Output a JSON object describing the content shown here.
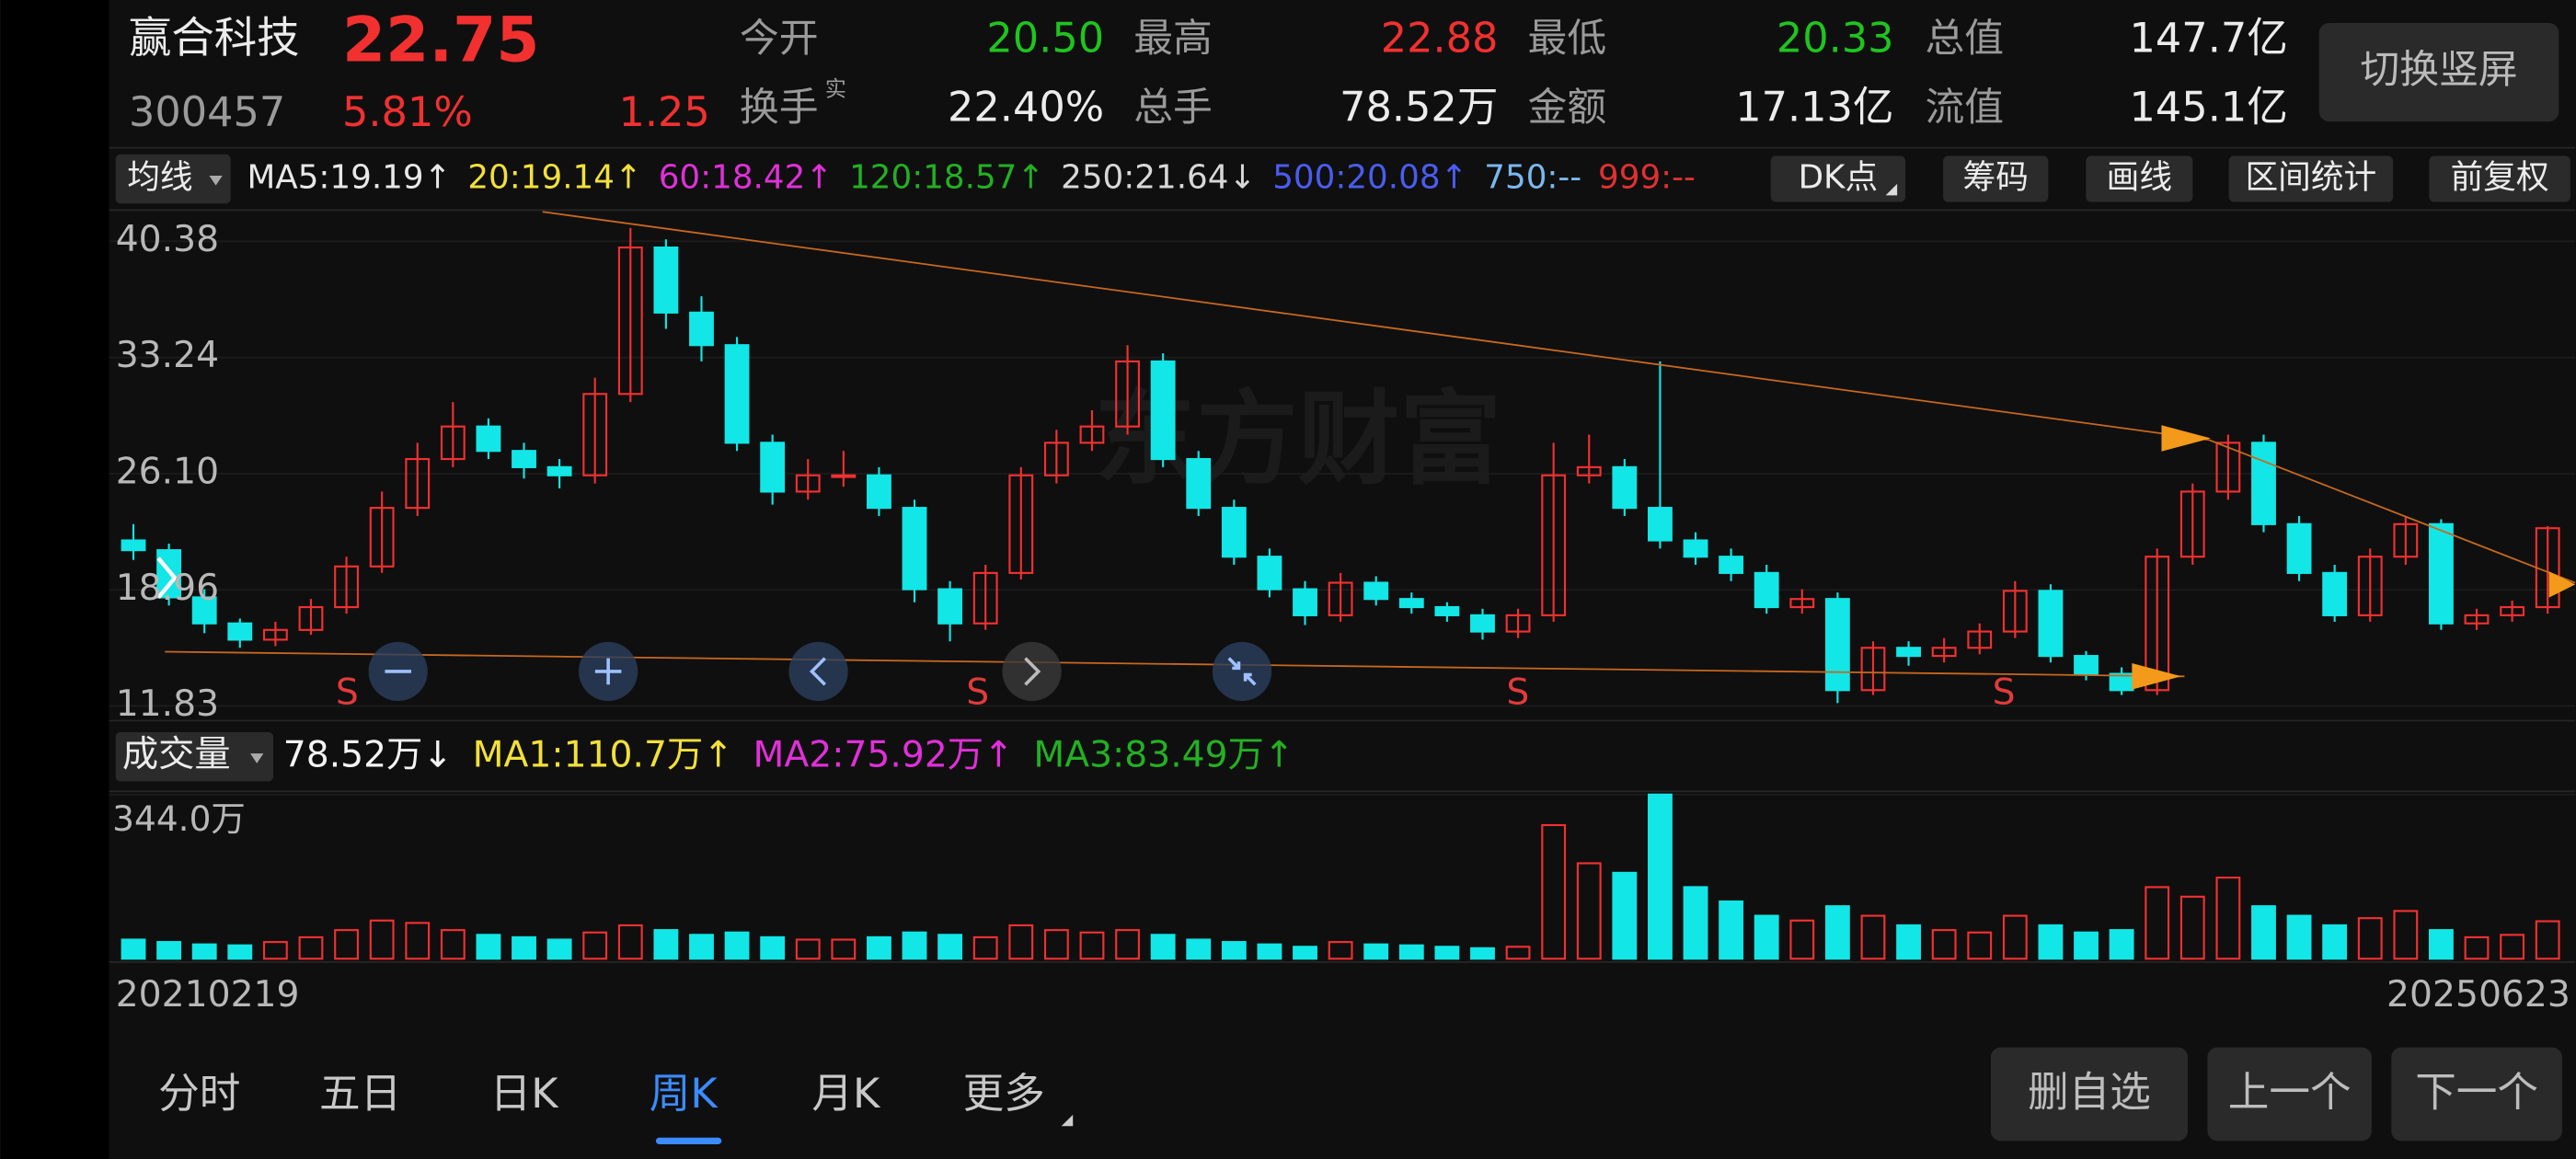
{
  "header": {
    "name": "赢合科技",
    "price": "22.75",
    "code": "300457",
    "change_pct": "5.81%",
    "change": "1.25",
    "stats": [
      [
        {
          "label": "今开",
          "value": "20.50",
          "color": "#1fc41f"
        },
        {
          "label": "最高",
          "value": "22.88",
          "color": "#f23030"
        },
        {
          "label": "最低",
          "value": "20.33",
          "color": "#1fc41f"
        },
        {
          "label": "总值",
          "value": "147.7亿",
          "color": "#ececec"
        }
      ],
      [
        {
          "label": "换手",
          "sup": "实",
          "value": "22.40%",
          "color": "#ececec"
        },
        {
          "label": "总手",
          "value": "78.52万",
          "color": "#ececec"
        },
        {
          "label": "金额",
          "value": "17.13亿",
          "color": "#ececec"
        },
        {
          "label": "流值",
          "value": "145.1亿",
          "color": "#ececec"
        }
      ]
    ],
    "rotate_button": "切换竖屏"
  },
  "chart_data": [
    {
      "type": "candlestick",
      "ma_button": "均线",
      "ma_legend": [
        {
          "text": "MA5:19.19↑",
          "color": "#e8e8e8"
        },
        {
          "text": "20:19.14↑",
          "color": "#f2e03a"
        },
        {
          "text": "60:18.42↑",
          "color": "#e030d8"
        },
        {
          "text": "120:18.57↑",
          "color": "#23b023"
        },
        {
          "text": "250:21.64↓",
          "color": "#d8d8d8"
        },
        {
          "text": "500:20.08↑",
          "color": "#4a5cf0"
        },
        {
          "text": "750:--",
          "color": "#7ab8f0"
        },
        {
          "text": "999:--",
          "color": "#e03030"
        }
      ],
      "tools": [
        "DK点",
        "筹码",
        "画线",
        "区间统计",
        "前复权"
      ],
      "watermark": "东方财富",
      "signals": [
        "S",
        "S",
        "S",
        "S"
      ],
      "ylim": [
        11.83,
        40.38
      ],
      "yticks": [
        40.38,
        33.24,
        {
          "value": 26.1,
          "label": "26.10"
        },
        18.96,
        11.83
      ],
      "up_color": "#f23030",
      "down_color": "#12e6e6",
      "open": [
        22,
        21.4,
        18.5,
        16.9,
        15.9,
        16.5,
        17.9,
        20.4,
        24,
        27,
        29,
        27.5,
        26.5,
        26,
        31,
        40,
        36,
        34,
        28,
        25,
        26,
        26,
        24,
        19,
        16.9,
        20,
        26,
        28,
        29,
        33,
        27,
        24,
        21,
        19,
        17.4,
        19.4,
        18.4,
        17.9,
        17.4,
        16.4,
        17.4,
        26,
        26.5,
        24,
        22,
        21,
        20,
        17.9,
        18.4,
        12.8,
        15.4,
        14.9,
        15.4,
        16.4,
        18.9,
        14.9,
        13.8,
        12.8,
        21,
        25,
        28,
        23,
        20,
        17.4,
        21,
        23,
        16.9,
        17.4,
        17.9
      ],
      "high": [
        23,
        21.8,
        19,
        17.2,
        17,
        18.4,
        21,
        25,
        28,
        30.5,
        29.5,
        28,
        27,
        32,
        41.2,
        40.5,
        37,
        34.5,
        28.5,
        27,
        27.5,
        26.5,
        24.5,
        19.5,
        20.5,
        26.5,
        28.8,
        30,
        34,
        33.5,
        27.5,
        24.5,
        21.5,
        19.5,
        20,
        19.8,
        18.8,
        18.2,
        17.8,
        17.8,
        28,
        28.5,
        27,
        33,
        22.5,
        21.5,
        20.5,
        19,
        18.8,
        15.8,
        15.8,
        16,
        16.9,
        19.5,
        19.3,
        15.2,
        14.2,
        21.5,
        25.5,
        28.5,
        28.5,
        23.5,
        20.5,
        21.5,
        23.5,
        23.3,
        17.8,
        18.3,
        22.88
      ],
      "low": [
        20.8,
        18,
        16.3,
        15.4,
        15.5,
        16.2,
        17.5,
        20,
        23.5,
        26.5,
        27,
        25.8,
        25.2,
        25.5,
        30.5,
        35,
        33,
        27.5,
        24.2,
        24.5,
        25.3,
        23.5,
        18.2,
        15.8,
        16.5,
        19.6,
        25.5,
        27.5,
        28.5,
        26.5,
        23.5,
        20.5,
        18.5,
        16.8,
        17,
        18,
        17.5,
        17,
        15.9,
        16,
        17,
        25.5,
        23.5,
        21.5,
        20.5,
        19.5,
        17.5,
        17.5,
        12,
        12.5,
        14.3,
        14.5,
        15,
        16,
        14.5,
        13.4,
        12.5,
        12.5,
        20.5,
        24.5,
        22.5,
        19.5,
        17,
        17,
        20.5,
        16.5,
        16.5,
        17,
        17.5
      ],
      "close": [
        21.4,
        18.5,
        16.9,
        15.9,
        16.5,
        17.9,
        20.4,
        24,
        27,
        29,
        27.5,
        26.5,
        26,
        31,
        40,
        36,
        34,
        28,
        25,
        26,
        26,
        24,
        19,
        16.9,
        20,
        26,
        28,
        29,
        33,
        27,
        24,
        21,
        19,
        17.4,
        19.4,
        18.4,
        17.9,
        17.4,
        16.4,
        17.4,
        26,
        26.5,
        24,
        22,
        21,
        20,
        17.9,
        18.4,
        12.8,
        15.4,
        14.9,
        15.4,
        16.4,
        18.9,
        14.9,
        13.8,
        12.8,
        21,
        25,
        28,
        23,
        20,
        17.4,
        21,
        23,
        16.9,
        17.4,
        17.9,
        22.75
      ]
    },
    {
      "type": "bar",
      "legend_button": "成交量",
      "legend": [
        {
          "text": "78.52万↓",
          "color": "#f4f4f4"
        },
        {
          "text": "MA1:110.7万↑",
          "color": "#f2e03a"
        },
        {
          "text": "MA2:75.92万↑",
          "color": "#e030d8"
        },
        {
          "text": "MA3:83.49万↑",
          "color": "#23b023"
        }
      ],
      "ylim": [
        0,
        344
      ],
      "yticks": [
        {
          "value": 344,
          "label": "344.0万"
        }
      ],
      "values": [
        40,
        35,
        30,
        28,
        35,
        45,
        60,
        80,
        75,
        60,
        50,
        45,
        40,
        55,
        70,
        60,
        50,
        55,
        45,
        40,
        40,
        45,
        55,
        50,
        45,
        70,
        60,
        55,
        60,
        50,
        40,
        35,
        30,
        25,
        35,
        30,
        28,
        25,
        22,
        25,
        280,
        200,
        180,
        344,
        150,
        120,
        90,
        80,
        110,
        90,
        70,
        60,
        55,
        90,
        70,
        55,
        60,
        150,
        130,
        170,
        110,
        90,
        70,
        85,
        100,
        60,
        45,
        50,
        78.52
      ],
      "x_labels": [
        "20210219",
        "20250623"
      ]
    }
  ],
  "tabs": [
    "分时",
    "五日",
    "日K",
    "周K",
    "月K",
    "更多"
  ],
  "buttons": [
    "删自选",
    "上一个",
    "下一个"
  ]
}
